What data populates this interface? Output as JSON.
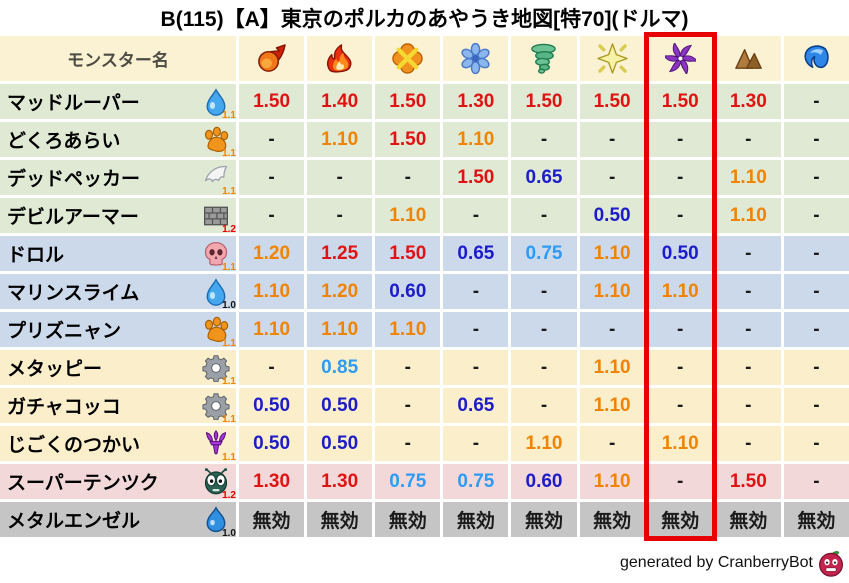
{
  "title": "B(115)【A】東京のポルカのあやうき地図[特70](ドルマ)",
  "chart_data": {
    "type": "table",
    "title": "B(115)【A】東京のポルカのあやうき地図[特70](ドルマ)",
    "name_header": "モンスター名",
    "element_columns": [
      {
        "icon": "fireball-icon",
        "highlighted": false
      },
      {
        "icon": "flame-icon",
        "highlighted": false
      },
      {
        "icon": "orange-burst-icon",
        "highlighted": false
      },
      {
        "icon": "snowflake-icon",
        "highlighted": false
      },
      {
        "icon": "tornado-icon",
        "highlighted": false
      },
      {
        "icon": "spark-icon",
        "highlighted": false
      },
      {
        "icon": "purple-pinwheel-icon",
        "highlighted": true
      },
      {
        "icon": "mountain-icon",
        "highlighted": false
      },
      {
        "icon": "wave-icon",
        "highlighted": false
      }
    ],
    "rows": [
      {
        "name": "マッドルーパー",
        "icon": "water-drop-icon",
        "icon_label": "1.1",
        "icon_label_tone": "orange",
        "group": "green",
        "values": [
          "1.50",
          "1.40",
          "1.50",
          "1.30",
          "1.50",
          "1.50",
          "1.50",
          "1.30",
          "-"
        ]
      },
      {
        "name": "どくろあらい",
        "icon": "paw-icon",
        "icon_label": "1.1",
        "icon_label_tone": "orange",
        "group": "green",
        "values": [
          "-",
          "1.10",
          "1.50",
          "1.10",
          "-",
          "-",
          "-",
          "-",
          "-"
        ]
      },
      {
        "name": "デッドペッカー",
        "icon": "wing-icon",
        "icon_label": "1.1",
        "icon_label_tone": "orange",
        "group": "green",
        "values": [
          "-",
          "-",
          "-",
          "1.50",
          "0.65",
          "-",
          "-",
          "1.10",
          "-"
        ]
      },
      {
        "name": "デビルアーマー",
        "icon": "brick-icon",
        "icon_label": "1.2",
        "icon_label_tone": "red",
        "group": "green",
        "values": [
          "-",
          "-",
          "1.10",
          "-",
          "-",
          "0.50",
          "-",
          "1.10",
          "-"
        ]
      },
      {
        "name": "ドロル",
        "icon": "skull-icon",
        "icon_label": "1.1",
        "icon_label_tone": "orange",
        "group": "blue",
        "values": [
          "1.20",
          "1.25",
          "1.50",
          "0.65",
          "0.75",
          "1.10",
          "0.50",
          "-",
          "-"
        ]
      },
      {
        "name": "マリンスライム",
        "icon": "water-drop-icon",
        "icon_label": "1.0",
        "icon_label_tone": "black",
        "group": "blue",
        "values": [
          "1.10",
          "1.20",
          "0.60",
          "-",
          "-",
          "1.10",
          "1.10",
          "-",
          "-"
        ]
      },
      {
        "name": "プリズニャン",
        "icon": "paw-icon",
        "icon_label": "1.1",
        "icon_label_tone": "orange",
        "group": "blue",
        "values": [
          "1.10",
          "1.10",
          "1.10",
          "-",
          "-",
          "-",
          "-",
          "-",
          "-"
        ]
      },
      {
        "name": "メタッピー",
        "icon": "gear-icon",
        "icon_label": "1.1",
        "icon_label_tone": "orange",
        "group": "cream",
        "values": [
          "-",
          "0.85",
          "-",
          "-",
          "-",
          "1.10",
          "-",
          "-",
          "-"
        ]
      },
      {
        "name": "ガチャコッコ",
        "icon": "gear-icon",
        "icon_label": "1.1",
        "icon_label_tone": "orange",
        "group": "cream",
        "values": [
          "0.50",
          "0.50",
          "-",
          "0.65",
          "-",
          "1.10",
          "-",
          "-",
          "-"
        ]
      },
      {
        "name": "じごくのつかい",
        "icon": "trident-icon",
        "icon_label": "1.1",
        "icon_label_tone": "orange",
        "group": "cream",
        "values": [
          "0.50",
          "0.50",
          "-",
          "-",
          "1.10",
          "-",
          "1.10",
          "-",
          "-"
        ]
      },
      {
        "name": "スーパーテンツク",
        "icon": "bug-icon",
        "icon_label": "1.2",
        "icon_label_tone": "red",
        "group": "pink",
        "values": [
          "1.30",
          "1.30",
          "0.75",
          "0.75",
          "0.60",
          "1.10",
          "-",
          "1.50",
          "-"
        ]
      },
      {
        "name": "メタルエンゼル",
        "icon": "slime-icon",
        "icon_label": "1.0",
        "icon_label_tone": "black",
        "group": "gray",
        "values": [
          "無効",
          "無効",
          "無効",
          "無効",
          "無効",
          "無効",
          "無効",
          "無効",
          "無効"
        ]
      }
    ]
  },
  "colors": {
    "highlight": "#e60000",
    "header_bg": "#fbf1d3",
    "groups": {
      "green": "#dfe9d3",
      "blue": "#ccd9eb",
      "cream": "#fbeecb",
      "pink": "#f3d8da",
      "gray": "#c5c5c5"
    },
    "value_tones": {
      "red": "#e01212",
      "orange": "#f08300",
      "blue": "#1c1cc8",
      "light_blue": "#2f9bf5",
      "neutral": "#1a1a1a"
    },
    "label_tones": {
      "orange": "#f08300",
      "red": "#e60000",
      "black": "#141414"
    }
  },
  "footer": {
    "credit": "generated by CranberryBot",
    "icon": "cranberry-bot-icon"
  }
}
